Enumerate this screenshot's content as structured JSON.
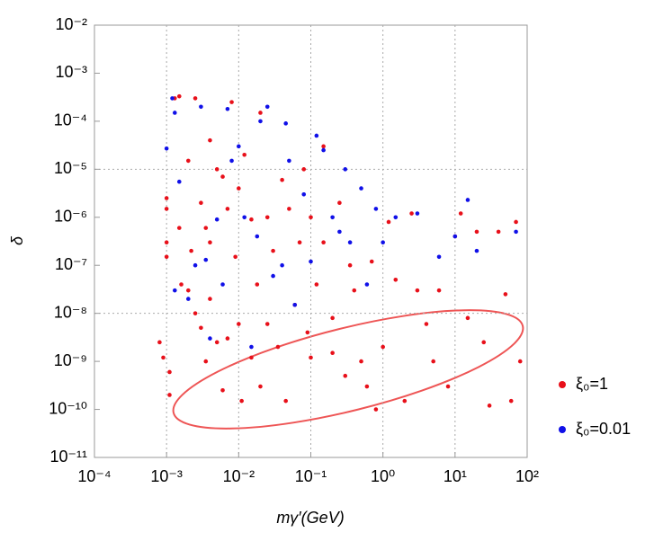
{
  "chart_data": {
    "type": "scatter",
    "xlabel": "mγ′(GeV)",
    "ylabel": "δ",
    "xscale": "log",
    "yscale": "log",
    "xlim": [
      0.0001,
      100
    ],
    "ylim": [
      1e-11,
      0.01
    ],
    "xticks": [
      {
        "value": 0.0001,
        "label": "10⁻⁴"
      },
      {
        "value": 0.001,
        "label": "10⁻³"
      },
      {
        "value": 0.01,
        "label": "10⁻²"
      },
      {
        "value": 0.1,
        "label": "10⁻¹"
      },
      {
        "value": 1,
        "label": "10⁰"
      },
      {
        "value": 10,
        "label": "10¹"
      },
      {
        "value": 100,
        "label": "10²"
      }
    ],
    "yticks": [
      {
        "value": 1e-11,
        "label": "10⁻¹¹"
      },
      {
        "value": 1e-10,
        "label": "10⁻¹⁰"
      },
      {
        "value": 1e-09,
        "label": "10⁻⁹"
      },
      {
        "value": 1e-08,
        "label": "10⁻⁸"
      },
      {
        "value": 1e-07,
        "label": "10⁻⁷"
      },
      {
        "value": 1e-06,
        "label": "10⁻⁶"
      },
      {
        "value": 1e-05,
        "label": "10⁻⁵"
      },
      {
        "value": 0.0001,
        "label": "10⁻⁴"
      },
      {
        "value": 0.001,
        "label": "10⁻³"
      },
      {
        "value": 0.01,
        "label": "10⁻²"
      }
    ],
    "xgrid": [
      0.001,
      0.01,
      0.1,
      1,
      10
    ],
    "ygrid": [
      1e-05,
      1e-08
    ],
    "legend": "right",
    "series": [
      {
        "name": "ξ₀=1",
        "color": "#e8101a",
        "x": [
          0.0008,
          0.0009,
          0.001,
          0.001,
          0.001,
          0.001,
          0.0011,
          0.0011,
          0.0013,
          0.0015,
          0.0015,
          0.0016,
          0.002,
          0.002,
          0.0022,
          0.0025,
          0.0025,
          0.003,
          0.003,
          0.0035,
          0.0035,
          0.004,
          0.004,
          0.004,
          0.005,
          0.005,
          0.006,
          0.006,
          0.007,
          0.007,
          0.008,
          0.009,
          0.01,
          0.01,
          0.011,
          0.012,
          0.015,
          0.015,
          0.018,
          0.02,
          0.02,
          0.025,
          0.025,
          0.03,
          0.035,
          0.04,
          0.045,
          0.05,
          0.06,
          0.07,
          0.08,
          0.09,
          0.1,
          0.1,
          0.12,
          0.15,
          0.15,
          0.2,
          0.2,
          0.25,
          0.3,
          0.35,
          0.4,
          0.5,
          0.6,
          0.7,
          0.8,
          1,
          1.2,
          1.5,
          2,
          2.5,
          3,
          4,
          5,
          6,
          8,
          10,
          12,
          15,
          20,
          25,
          30,
          40,
          50,
          60,
          70,
          80
        ],
        "values": [
          2.5e-09,
          1.2e-09,
          2.5e-06,
          1.5e-06,
          3e-07,
          1.5e-07,
          6e-10,
          2e-10,
          0.0003,
          0.00033,
          6e-07,
          4e-08,
          1.5e-05,
          3e-08,
          2e-07,
          0.0003,
          1e-08,
          5e-09,
          2e-06,
          6e-07,
          1e-09,
          4e-05,
          3e-07,
          2e-08,
          1e-05,
          2.5e-09,
          7e-06,
          2.5e-10,
          1.5e-06,
          3e-09,
          0.00025,
          1.5e-07,
          4e-06,
          6e-09,
          1.5e-10,
          2e-05,
          9e-07,
          1.2e-09,
          4e-08,
          0.00015,
          3e-10,
          1e-06,
          6e-09,
          2e-07,
          2e-09,
          6e-06,
          1.5e-10,
          1.5e-06,
          1.5e-08,
          3e-07,
          1e-05,
          4e-09,
          1e-06,
          1.2e-09,
          4e-08,
          3e-05,
          3e-07,
          8e-09,
          1.5e-09,
          2e-06,
          5e-10,
          1e-07,
          3e-08,
          1e-09,
          3e-10,
          1.2e-07,
          1e-10,
          2e-09,
          8e-07,
          5e-08,
          1.5e-10,
          1.2e-06,
          3e-08,
          6e-09,
          1e-09,
          3e-08,
          3e-10,
          4e-07,
          1.2e-06,
          8e-09,
          5e-07,
          2.5e-09,
          1.2e-10,
          5e-07,
          2.5e-08,
          1.5e-10,
          8e-07,
          1e-09
        ]
      },
      {
        "name": "ξ₀=0.01",
        "color": "#1010e8",
        "x": [
          0.001,
          0.0012,
          0.0013,
          0.0013,
          0.0015,
          0.002,
          0.0025,
          0.003,
          0.0035,
          0.004,
          0.005,
          0.006,
          0.007,
          0.008,
          0.01,
          0.012,
          0.015,
          0.018,
          0.02,
          0.025,
          0.03,
          0.04,
          0.045,
          0.05,
          0.06,
          0.08,
          0.1,
          0.12,
          0.15,
          0.2,
          0.25,
          0.3,
          0.35,
          0.5,
          0.6,
          0.8,
          1,
          1.5,
          3,
          6,
          10,
          15,
          20,
          70
        ],
        "values": [
          2.7e-05,
          0.0003,
          0.00015,
          3e-08,
          5.5e-06,
          2e-08,
          1e-07,
          0.0002,
          1.3e-07,
          3e-09,
          9e-07,
          4e-08,
          0.00018,
          1.5e-05,
          3e-05,
          1e-06,
          2e-09,
          4e-07,
          0.0001,
          0.0002,
          6e-08,
          1e-07,
          9e-05,
          1.5e-05,
          1.5e-08,
          3e-06,
          1.2e-07,
          5e-05,
          2.5e-05,
          1e-06,
          5e-07,
          1e-05,
          3e-07,
          4e-06,
          4e-08,
          1.5e-06,
          3e-07,
          1e-06,
          1.2e-06,
          1.5e-07,
          4e-07,
          2.3e-06,
          2e-07,
          5e-07
        ]
      }
    ]
  }
}
